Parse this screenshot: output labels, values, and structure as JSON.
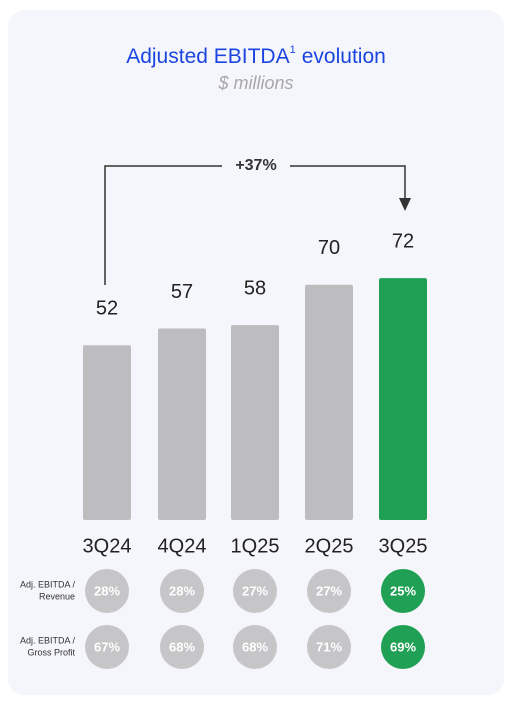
{
  "chart_data": {
    "type": "bar",
    "title": "Adjusted EBITDA",
    "title_footnote": "1",
    "title_suffix": "evolution",
    "subtitle": "$ millions",
    "annotation": "+37%",
    "categories": [
      "3Q24",
      "4Q24",
      "1Q25",
      "2Q25",
      "3Q25"
    ],
    "values": [
      52,
      57,
      58,
      70,
      72
    ],
    "colors": [
      "#bdbdbf",
      "#bdbdbf",
      "#bdbdbf",
      "#bdbdbf",
      "#1fa055"
    ],
    "rows": [
      {
        "label": [
          "Adj. EBITDA /",
          "Revenue"
        ],
        "values": [
          28,
          28,
          27,
          27,
          25
        ],
        "value_labels": [
          "28%",
          "28%",
          "27%",
          "27%",
          "25%"
        ],
        "colors": [
          "#c6c6c8",
          "#c6c6c8",
          "#c6c6c8",
          "#c6c6c8",
          "#1fa055"
        ]
      },
      {
        "label": [
          "Adj. EBITDA /",
          "Gross Profit"
        ],
        "values": [
          67,
          68,
          68,
          71,
          69
        ],
        "value_labels": [
          "67%",
          "68%",
          "68%",
          "71%",
          "69%"
        ],
        "colors": [
          "#c6c6c8",
          "#c6c6c8",
          "#c6c6c8",
          "#c6c6c8",
          "#1fa055"
        ]
      }
    ]
  }
}
